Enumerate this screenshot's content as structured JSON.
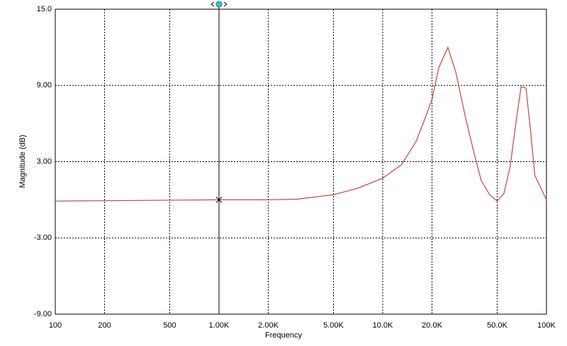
{
  "chart_data": {
    "type": "line",
    "xlabel": "Frequency",
    "ylabel": "Magnitude (dB)",
    "log_x": true,
    "grid": true,
    "xlim": [
      100,
      100000
    ],
    "xticks": [
      100,
      200,
      500,
      {
        "value": 1000,
        "label": "1.00K"
      },
      {
        "value": 2000,
        "label": "2.00K"
      },
      {
        "value": 5000,
        "label": "5.00K"
      },
      {
        "value": 10000,
        "label": "10.0K"
      },
      {
        "value": 20000,
        "label": "20.0K"
      },
      {
        "value": 50000,
        "label": "50.0K"
      },
      {
        "value": 100000,
        "label": "100K"
      }
    ],
    "ylim": [
      -9,
      15
    ],
    "yticks": [
      {
        "value": -9,
        "label": "-9.00"
      },
      {
        "value": -3,
        "label": "-3.00"
      },
      {
        "value": 3,
        "label": "3.00"
      },
      {
        "value": 9,
        "label": "9.00"
      },
      {
        "value": 15,
        "label": "15.0"
      }
    ],
    "cursor_x": 1000,
    "cursor_color": "#2fc4d6",
    "x": [
      100,
      1000,
      2000,
      3000,
      5000,
      7000,
      10000,
      13000,
      16000,
      18000,
      20000,
      22000,
      25000,
      28000,
      32000,
      36000,
      40000,
      45000,
      50000,
      55000,
      60000,
      65000,
      70000,
      75000,
      80000,
      85000,
      100000
    ],
    "series": [
      {
        "color": "#c8453c",
        "values": [
          -0.1,
          0,
          0,
          0.05,
          0.4,
          0.9,
          1.7,
          2.75,
          4.6,
          6.3,
          7.9,
          10.4,
          12.0,
          10.0,
          6.5,
          3.75,
          1.5,
          0.4,
          -0.1,
          0.5,
          2.6,
          6.0,
          8.9,
          8.8,
          5.4,
          1.9,
          0.0
        ]
      }
    ]
  }
}
